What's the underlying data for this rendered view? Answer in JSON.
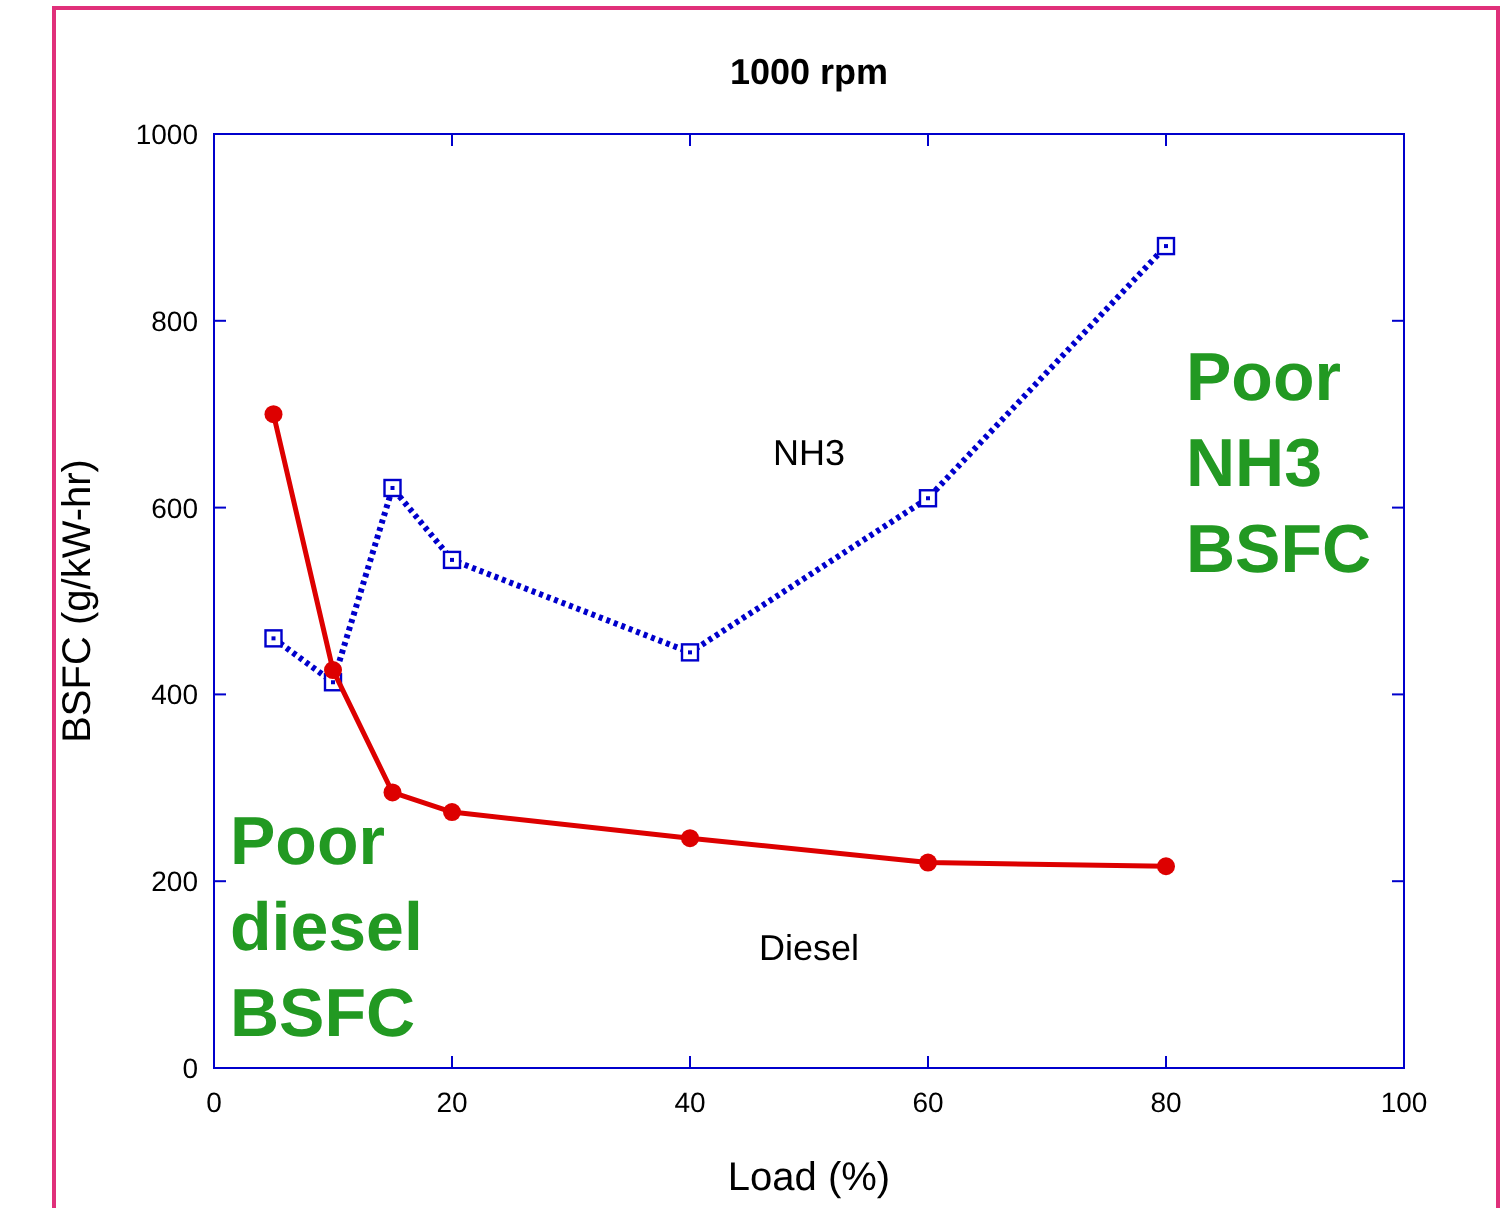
{
  "chart_data": {
    "type": "line",
    "title": "1000 rpm",
    "xlabel": "Load (%)",
    "ylabel": "BSFC (g/kW-hr)",
    "xlim": [
      0,
      100
    ],
    "xticks": [
      0,
      20,
      40,
      60,
      80,
      100
    ],
    "ylim": [
      0,
      1000
    ],
    "yticks": [
      0,
      200,
      400,
      600,
      800,
      1000
    ],
    "grid": false,
    "series": [
      {
        "name": "NH3",
        "color": "#0000cc",
        "x": [
          5,
          10,
          15,
          20,
          40,
          60,
          80
        ],
        "values": [
          460,
          413,
          621,
          544,
          445,
          610,
          880
        ],
        "marker": "square",
        "line_style": "dotted"
      },
      {
        "name": "Diesel",
        "color": "#dd0000",
        "x": [
          5,
          10,
          15,
          20,
          40,
          60,
          80
        ],
        "values": [
          700,
          426,
          295,
          274,
          246,
          220,
          216
        ],
        "marker": "circle",
        "line_style": "solid"
      }
    ],
    "annotations": [
      "Poor\nNH3\nBSFC",
      "Poor\ndiesel\nBSFC"
    ]
  }
}
